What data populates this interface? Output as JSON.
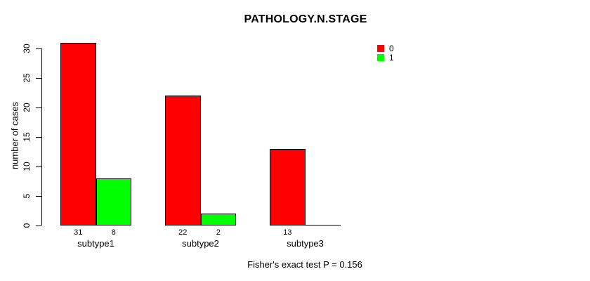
{
  "chart_data": {
    "type": "bar",
    "title": "PATHOLOGY.N.STAGE",
    "ylabel": "number of cases",
    "xlabel": "",
    "caption": "Fisher's exact test P = 0.156",
    "categories": [
      "subtype1",
      "subtype2",
      "subtype3"
    ],
    "series": [
      {
        "name": "0",
        "color": "#ff0000",
        "values": [
          31,
          22,
          13
        ],
        "value_labels": [
          "31",
          "22",
          "13"
        ]
      },
      {
        "name": "1",
        "color": "#00ff00",
        "values": [
          8,
          2,
          0
        ],
        "value_labels": [
          "8",
          "2",
          ""
        ]
      }
    ],
    "ylim": [
      0,
      30
    ],
    "yticks": [
      0,
      5,
      10,
      15,
      20,
      25,
      30
    ],
    "grid": false,
    "legend_position": "top-right",
    "bar_border_color": "#000000",
    "axis_color": "#000000",
    "background_color": "#ffffff",
    "text_color": "#000000"
  }
}
